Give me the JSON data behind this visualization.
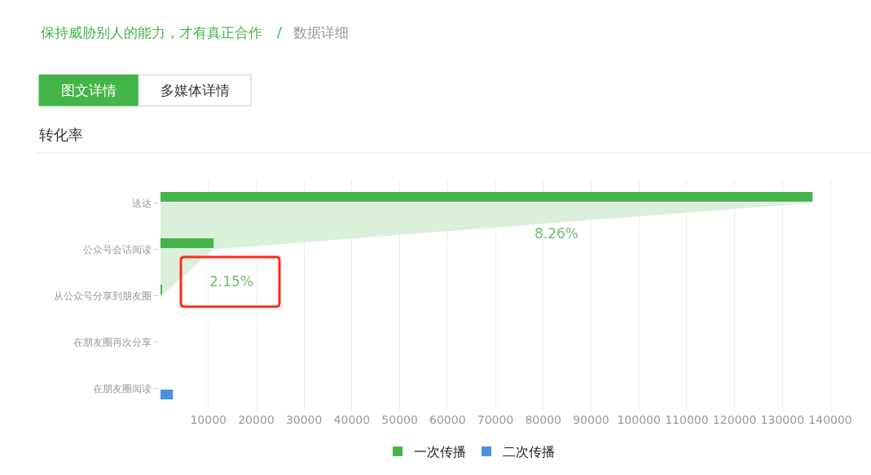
{
  "chart_data": {
    "type": "bar",
    "orientation": "horizontal",
    "title": "转化率",
    "categories": [
      "送达",
      "公众号会话阅读",
      "从公众号分享到朋友圈",
      "在朋友圈再次分享",
      "在朋友圈阅读"
    ],
    "series": [
      {
        "name": "一次传播",
        "color": "#44b549",
        "values": [
          136300,
          11100,
          200,
          null,
          null
        ]
      },
      {
        "name": "二次传播",
        "color": "#4a90e2",
        "values": [
          null,
          null,
          null,
          null,
          2600
        ]
      },
      {
        "type": "area",
        "color": "#daf0db",
        "values": [
          136300,
          11100,
          200,
          null,
          null
        ]
      }
    ],
    "xlim": [
      0,
      148000
    ],
    "xticks": [
      10000,
      20000,
      30000,
      40000,
      50000,
      60000,
      70000,
      80000,
      90000,
      100000,
      110000,
      120000,
      130000,
      140000
    ],
    "grid": "x",
    "legend": "bottom",
    "annotations": [
      "保持威胁别人的能力，才有真正合作",
      "/",
      "数据详细",
      "图文详情",
      "多媒体详情",
      "8.26%",
      "2.15%"
    ]
  }
}
